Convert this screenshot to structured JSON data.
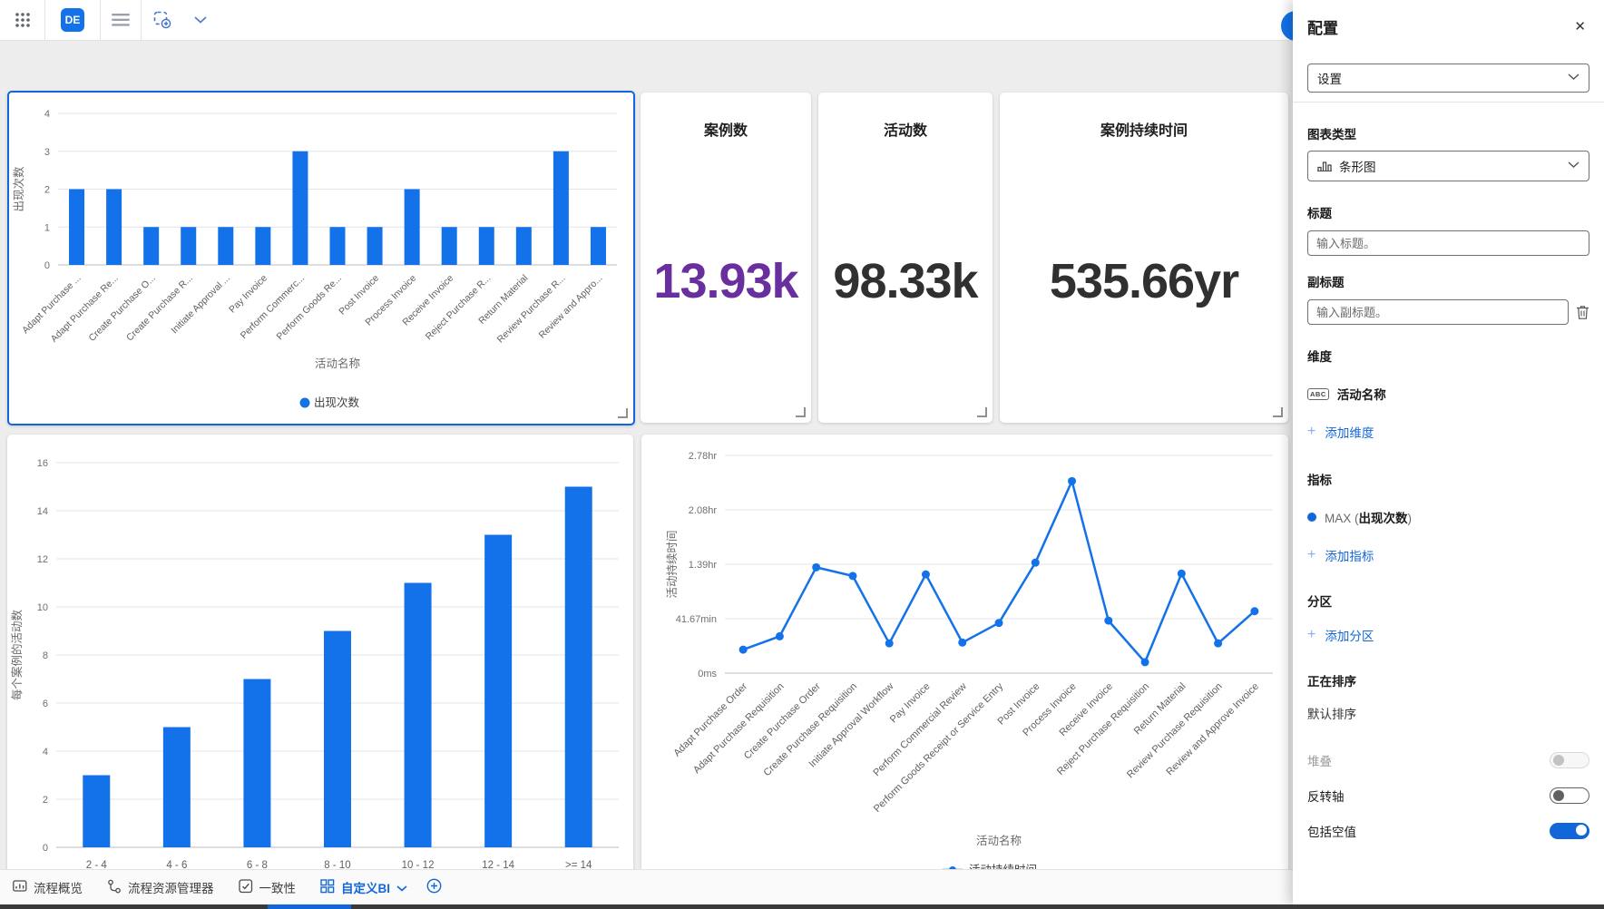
{
  "colors": {
    "primary": "#1372e9",
    "accent": "#1267d8",
    "purple": "#692f9f",
    "dark_value": "#303030"
  },
  "topbar": {
    "app_badge": "DE"
  },
  "kpis": [
    {
      "title": "案例数",
      "value": "13.93k",
      "color": "#692f9f"
    },
    {
      "title": "活动数",
      "value": "98.33k",
      "color": "#303030"
    },
    {
      "title": "案例持续时间",
      "value": "535.66yr",
      "color": "#303030"
    }
  ],
  "tabs": [
    {
      "label": "流程概览",
      "active": false
    },
    {
      "label": "流程资源管理器",
      "active": false
    },
    {
      "label": "一致性",
      "active": false
    },
    {
      "label": "自定义BI",
      "active": true
    }
  ],
  "panel": {
    "title": "配置",
    "close_icon": "✕",
    "settings_select": "设置",
    "chart_type_label": "图表类型",
    "chart_type_value": "条形图",
    "title_label": "标题",
    "title_placeholder": "输入标题。",
    "subtitle_label": "副标题",
    "subtitle_placeholder": "输入副标题。",
    "dimension_label": "维度",
    "dimension_badge": "ABC",
    "dimension_item": "活动名称",
    "add_dimension": "添加维度",
    "metric_label": "指标",
    "metric_prefix": "MAX (",
    "metric_name": "出现次数",
    "metric_suffix": ")",
    "add_metric": "添加指标",
    "partition_label": "分区",
    "add_partition": "添加分区",
    "sorting_label": "正在排序",
    "sorting_value": "默认排序",
    "toggles": [
      {
        "label": "堆叠",
        "state": "disabled"
      },
      {
        "label": "反转轴",
        "state": "off"
      },
      {
        "label": "包括空值",
        "state": "on"
      }
    ]
  },
  "chart_data": [
    {
      "type": "bar",
      "title": "",
      "xlabel": "活动名称",
      "ylabel": "出现次数",
      "legend": [
        "出现次数"
      ],
      "legend_position": "bottom",
      "grid": true,
      "ylim": [
        0,
        4
      ],
      "yticks": [
        0,
        1,
        2,
        3,
        4
      ],
      "categories": [
        "Adapt Purchase ...",
        "Adapt Purchase Re...",
        "Create Purchase O...",
        "Create Purchase R...",
        "Initiate Approval ...",
        "Pay Invoice",
        "Perform Commerc...",
        "Perform Goods Re...",
        "Post Invoice",
        "Process Invoice",
        "Receive Invoice",
        "Reject Purchase R...",
        "Return Material",
        "Review Purchase R...",
        "Review and Appro..."
      ],
      "values": [
        2,
        2,
        1,
        1,
        1,
        1,
        3,
        1,
        1,
        2,
        1,
        1,
        1,
        3,
        1
      ]
    },
    {
      "type": "bar",
      "title": "",
      "xlabel": "每个案例的活动数",
      "ylabel": "每个案例的活动数",
      "grid": true,
      "ylim": [
        0,
        16
      ],
      "yticks": [
        0,
        2,
        4,
        6,
        8,
        10,
        12,
        14,
        16
      ],
      "categories": [
        "2 - 4",
        "4 - 6",
        "6 - 8",
        "8 - 10",
        "10 - 12",
        "12 - 14",
        ">= 14"
      ],
      "values": [
        3,
        5,
        7,
        9,
        11,
        13,
        15
      ]
    },
    {
      "type": "line",
      "title": "",
      "xlabel": "活动名称",
      "ylabel": "活动持续时间",
      "legend": [
        "活动持续时间"
      ],
      "legend_position": "bottom",
      "grid": true,
      "unit": "hours",
      "ylim": [
        0,
        2.7778
      ],
      "ytick_values": [
        0,
        0.6944,
        1.3889,
        2.0833,
        2.7778
      ],
      "ytick_labels": [
        "0ms",
        "41.67min",
        "1.39hr",
        "2.08hr",
        "2.78hr"
      ],
      "categories": [
        "Adapt Purchase Order",
        "Adapt Purchase Requisition",
        "Create Purchase Order",
        "Create Purchase Requisition",
        "Initiate Approval Workflow",
        "Pay Invoice",
        "Perform Commercial Review",
        "Perform Goods Receipt or Service Entry",
        "Post Invoice",
        "Process Invoice",
        "Receive Invoice",
        "Reject Purchase Requisition",
        "Return Material",
        "Review Purchase Requisition",
        "Review and Approve Invoice"
      ],
      "values": [
        0.3,
        0.47,
        1.35,
        1.24,
        0.38,
        1.26,
        0.39,
        0.64,
        1.41,
        2.45,
        0.67,
        0.14,
        1.27,
        0.38,
        0.79
      ]
    }
  ]
}
